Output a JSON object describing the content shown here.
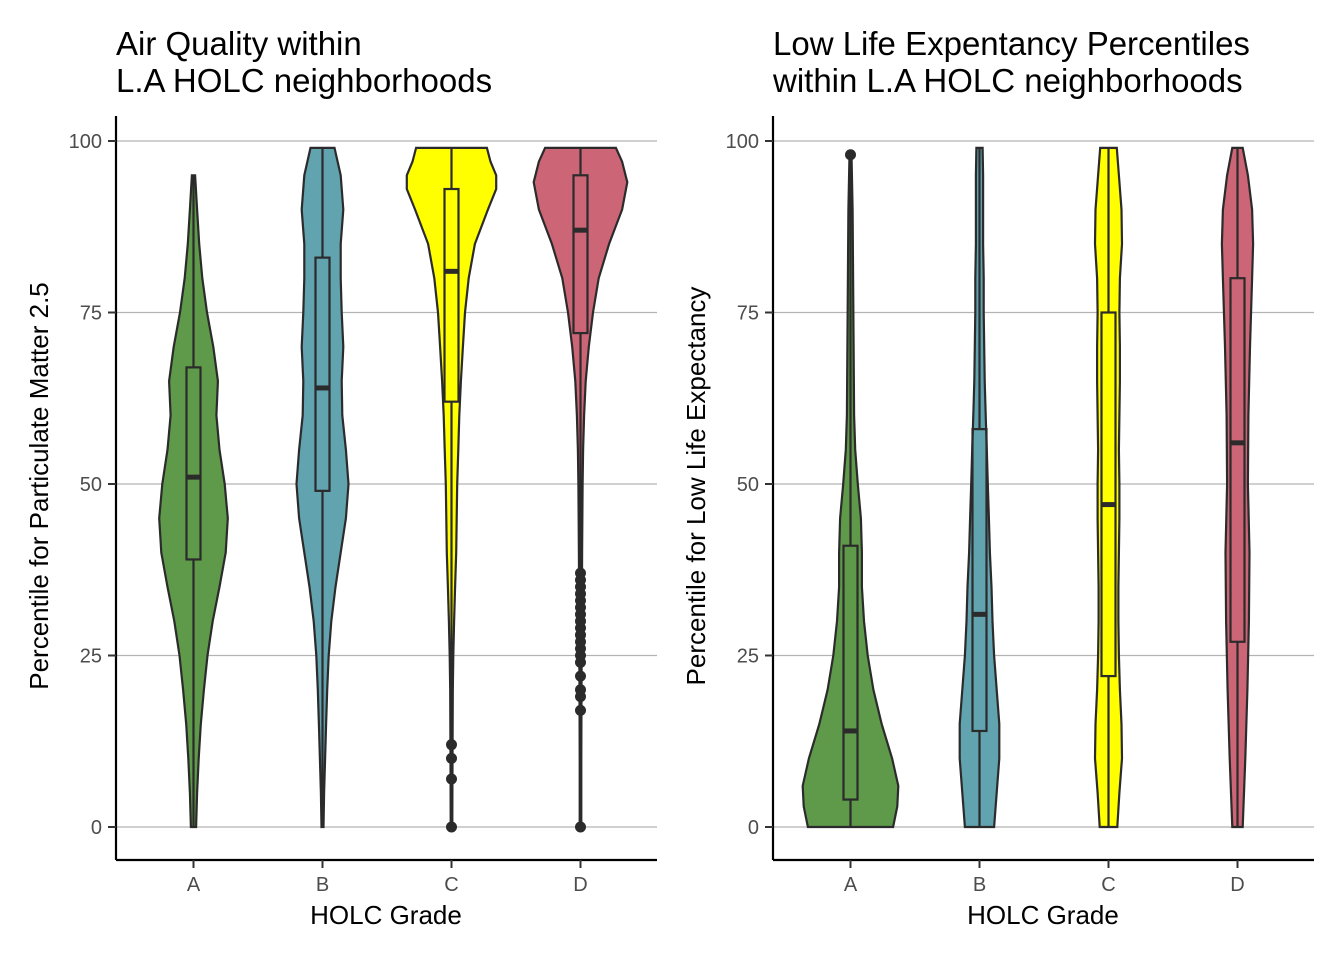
{
  "chart_data": [
    {
      "type": "violin",
      "title_lines": [
        "Air Quality within",
        "L.A HOLC neighborhoods"
      ],
      "xlabel": "HOLC Grade",
      "ylabel": "Percentile for Particulate Matter 2.5",
      "ylim": [
        0,
        100
      ],
      "yticks": [
        0,
        25,
        50,
        75,
        100
      ],
      "grid": "horizontal major",
      "categories": [
        "A",
        "B",
        "C",
        "D"
      ],
      "colors": [
        "#5f9a4a",
        "#62a3b0",
        "#ffff00",
        "#cc6677"
      ],
      "violins": [
        {
          "category": "A",
          "min": 0,
          "max": 95,
          "q1": 39,
          "median": 51,
          "q3": 67,
          "whisker_low": 0,
          "whisker_high": 95,
          "outliers": [],
          "density": [
            [
              0,
              0.05
            ],
            [
              5,
              0.07
            ],
            [
              10,
              0.1
            ],
            [
              15,
              0.14
            ],
            [
              20,
              0.2
            ],
            [
              25,
              0.27
            ],
            [
              30,
              0.37
            ],
            [
              35,
              0.5
            ],
            [
              40,
              0.62
            ],
            [
              45,
              0.66
            ],
            [
              50,
              0.6
            ],
            [
              55,
              0.5
            ],
            [
              60,
              0.44
            ],
            [
              65,
              0.47
            ],
            [
              70,
              0.38
            ],
            [
              75,
              0.26
            ],
            [
              80,
              0.17
            ],
            [
              85,
              0.11
            ],
            [
              90,
              0.07
            ],
            [
              95,
              0.03
            ]
          ]
        },
        {
          "category": "B",
          "min": 0,
          "max": 99,
          "q1": 49,
          "median": 64,
          "q3": 83,
          "whisker_low": 0,
          "whisker_high": 99,
          "outliers": [],
          "density": [
            [
              0,
              0.02
            ],
            [
              5,
              0.03
            ],
            [
              10,
              0.05
            ],
            [
              15,
              0.07
            ],
            [
              20,
              0.09
            ],
            [
              25,
              0.12
            ],
            [
              30,
              0.17
            ],
            [
              35,
              0.25
            ],
            [
              40,
              0.35
            ],
            [
              45,
              0.45
            ],
            [
              50,
              0.5
            ],
            [
              55,
              0.45
            ],
            [
              60,
              0.38
            ],
            [
              65,
              0.37
            ],
            [
              70,
              0.4
            ],
            [
              75,
              0.37
            ],
            [
              80,
              0.35
            ],
            [
              85,
              0.35
            ],
            [
              90,
              0.4
            ],
            [
              95,
              0.35
            ],
            [
              99,
              0.23
            ]
          ]
        },
        {
          "category": "C",
          "min": 0,
          "max": 99,
          "q1": 62,
          "median": 81,
          "q3": 93,
          "whisker_low": 0,
          "whisker_high": 99,
          "outliers": [
            0,
            7,
            10,
            12
          ],
          "density": [
            [
              0,
              0.015
            ],
            [
              10,
              0.02
            ],
            [
              20,
              0.025
            ],
            [
              25,
              0.035
            ],
            [
              30,
              0.05
            ],
            [
              35,
              0.07
            ],
            [
              40,
              0.09
            ],
            [
              45,
              0.1
            ],
            [
              50,
              0.11
            ],
            [
              55,
              0.13
            ],
            [
              60,
              0.15
            ],
            [
              65,
              0.18
            ],
            [
              70,
              0.22
            ],
            [
              75,
              0.26
            ],
            [
              80,
              0.33
            ],
            [
              85,
              0.45
            ],
            [
              90,
              0.7
            ],
            [
              93,
              0.86
            ],
            [
              95,
              0.86
            ],
            [
              97,
              0.75
            ],
            [
              99,
              0.68
            ]
          ]
        },
        {
          "category": "D",
          "min": 0,
          "max": 99,
          "q1": 72,
          "median": 87,
          "q3": 95,
          "whisker_low": 0,
          "whisker_high": 99,
          "outliers": [
            0,
            17,
            19,
            20,
            22,
            24,
            25,
            26,
            27,
            28,
            29,
            30,
            31,
            32,
            33,
            34,
            35,
            36,
            37
          ],
          "density": [
            [
              0,
              0.015
            ],
            [
              10,
              0.015
            ],
            [
              20,
              0.02
            ],
            [
              30,
              0.025
            ],
            [
              40,
              0.03
            ],
            [
              50,
              0.04
            ],
            [
              55,
              0.05
            ],
            [
              60,
              0.07
            ],
            [
              65,
              0.1
            ],
            [
              70,
              0.16
            ],
            [
              75,
              0.24
            ],
            [
              80,
              0.35
            ],
            [
              85,
              0.55
            ],
            [
              90,
              0.8
            ],
            [
              94,
              0.9
            ],
            [
              97,
              0.8
            ],
            [
              99,
              0.68
            ]
          ]
        }
      ]
    },
    {
      "type": "violin",
      "title_lines": [
        "Low Life Expentancy Percentiles",
        "within L.A HOLC neighborhoods"
      ],
      "xlabel": "HOLC Grade",
      "ylabel": "Percentile for Low Life Expectancy",
      "ylim": [
        0,
        100
      ],
      "yticks": [
        0,
        25,
        50,
        75,
        100
      ],
      "grid": "horizontal major",
      "categories": [
        "A",
        "B",
        "C",
        "D"
      ],
      "colors": [
        "#5f9a4a",
        "#62a3b0",
        "#ffff00",
        "#cc6677"
      ],
      "violins": [
        {
          "category": "A",
          "min": 0,
          "max": 98,
          "q1": 4,
          "median": 14,
          "q3": 41,
          "whisker_low": 0,
          "whisker_high": 98,
          "outliers": [
            98
          ],
          "density": [
            [
              0,
              0.82
            ],
            [
              3,
              0.9
            ],
            [
              6,
              0.92
            ],
            [
              10,
              0.8
            ],
            [
              15,
              0.6
            ],
            [
              20,
              0.44
            ],
            [
              25,
              0.33
            ],
            [
              30,
              0.26
            ],
            [
              35,
              0.22
            ],
            [
              40,
              0.22
            ],
            [
              45,
              0.2
            ],
            [
              50,
              0.14
            ],
            [
              55,
              0.09
            ],
            [
              60,
              0.07
            ],
            [
              70,
              0.06
            ],
            [
              80,
              0.05
            ],
            [
              90,
              0.04
            ],
            [
              98,
              0.02
            ]
          ]
        },
        {
          "category": "B",
          "min": 0,
          "max": 99,
          "q1": 14,
          "median": 31,
          "q3": 58,
          "whisker_low": 0,
          "whisker_high": 99,
          "outliers": [],
          "density": [
            [
              0,
              0.28
            ],
            [
              5,
              0.33
            ],
            [
              10,
              0.38
            ],
            [
              15,
              0.38
            ],
            [
              20,
              0.33
            ],
            [
              25,
              0.28
            ],
            [
              30,
              0.25
            ],
            [
              35,
              0.23
            ],
            [
              40,
              0.2
            ],
            [
              45,
              0.18
            ],
            [
              50,
              0.16
            ],
            [
              55,
              0.14
            ],
            [
              60,
              0.12
            ],
            [
              65,
              0.1
            ],
            [
              70,
              0.09
            ],
            [
              75,
              0.08
            ],
            [
              80,
              0.08
            ],
            [
              85,
              0.07
            ],
            [
              90,
              0.07
            ],
            [
              95,
              0.07
            ],
            [
              99,
              0.06
            ]
          ]
        },
        {
          "category": "C",
          "min": 0,
          "max": 99,
          "q1": 22,
          "median": 47,
          "q3": 75,
          "whisker_low": 0,
          "whisker_high": 99,
          "outliers": [],
          "density": [
            [
              0,
              0.17
            ],
            [
              5,
              0.21
            ],
            [
              10,
              0.26
            ],
            [
              15,
              0.25
            ],
            [
              20,
              0.22
            ],
            [
              25,
              0.2
            ],
            [
              30,
              0.19
            ],
            [
              35,
              0.19
            ],
            [
              40,
              0.2
            ],
            [
              45,
              0.21
            ],
            [
              50,
              0.21
            ],
            [
              55,
              0.2
            ],
            [
              60,
              0.21
            ],
            [
              65,
              0.22
            ],
            [
              70,
              0.22
            ],
            [
              75,
              0.21
            ],
            [
              80,
              0.22
            ],
            [
              85,
              0.26
            ],
            [
              90,
              0.25
            ],
            [
              95,
              0.2
            ],
            [
              99,
              0.16
            ]
          ]
        },
        {
          "category": "D",
          "min": 0,
          "max": 99,
          "q1": 27,
          "median": 56,
          "q3": 80,
          "whisker_low": 0,
          "whisker_high": 99,
          "outliers": [],
          "density": [
            [
              0,
              0.1
            ],
            [
              10,
              0.15
            ],
            [
              20,
              0.19
            ],
            [
              30,
              0.22
            ],
            [
              40,
              0.23
            ],
            [
              50,
              0.2
            ],
            [
              60,
              0.21
            ],
            [
              70,
              0.24
            ],
            [
              80,
              0.28
            ],
            [
              85,
              0.3
            ],
            [
              90,
              0.28
            ],
            [
              95,
              0.2
            ],
            [
              99,
              0.1
            ]
          ]
        }
      ]
    }
  ]
}
